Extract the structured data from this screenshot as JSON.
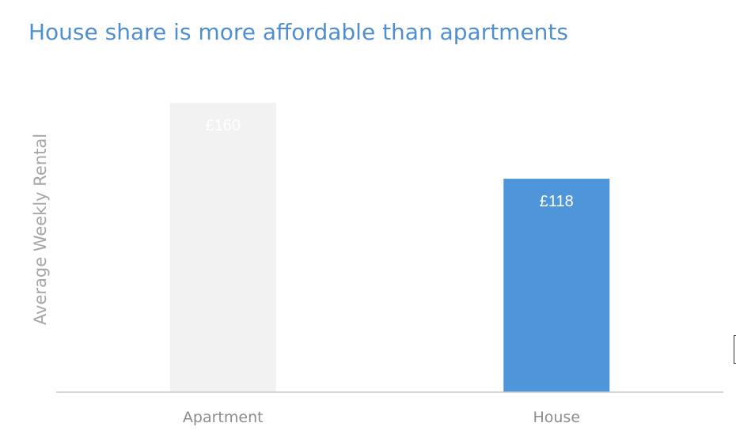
{
  "chart_data": {
    "type": "bar",
    "title": "House share is more affordable than apartments",
    "ylabel": "Average Weekly Rental",
    "xlabel": "",
    "categories": [
      "Apartment",
      "House"
    ],
    "values": [
      160,
      118
    ],
    "data_labels": [
      "£160",
      "£118"
    ],
    "ylim": [
      0,
      160
    ],
    "grid": false,
    "legend": "none",
    "colors": {
      "bars": [
        "#f2f2f2",
        "#4f95da"
      ],
      "data_labels": [
        "#ffffff",
        "#ffffff"
      ],
      "title": "#4f8fcf",
      "axis_line": "#c9c9c9"
    }
  }
}
